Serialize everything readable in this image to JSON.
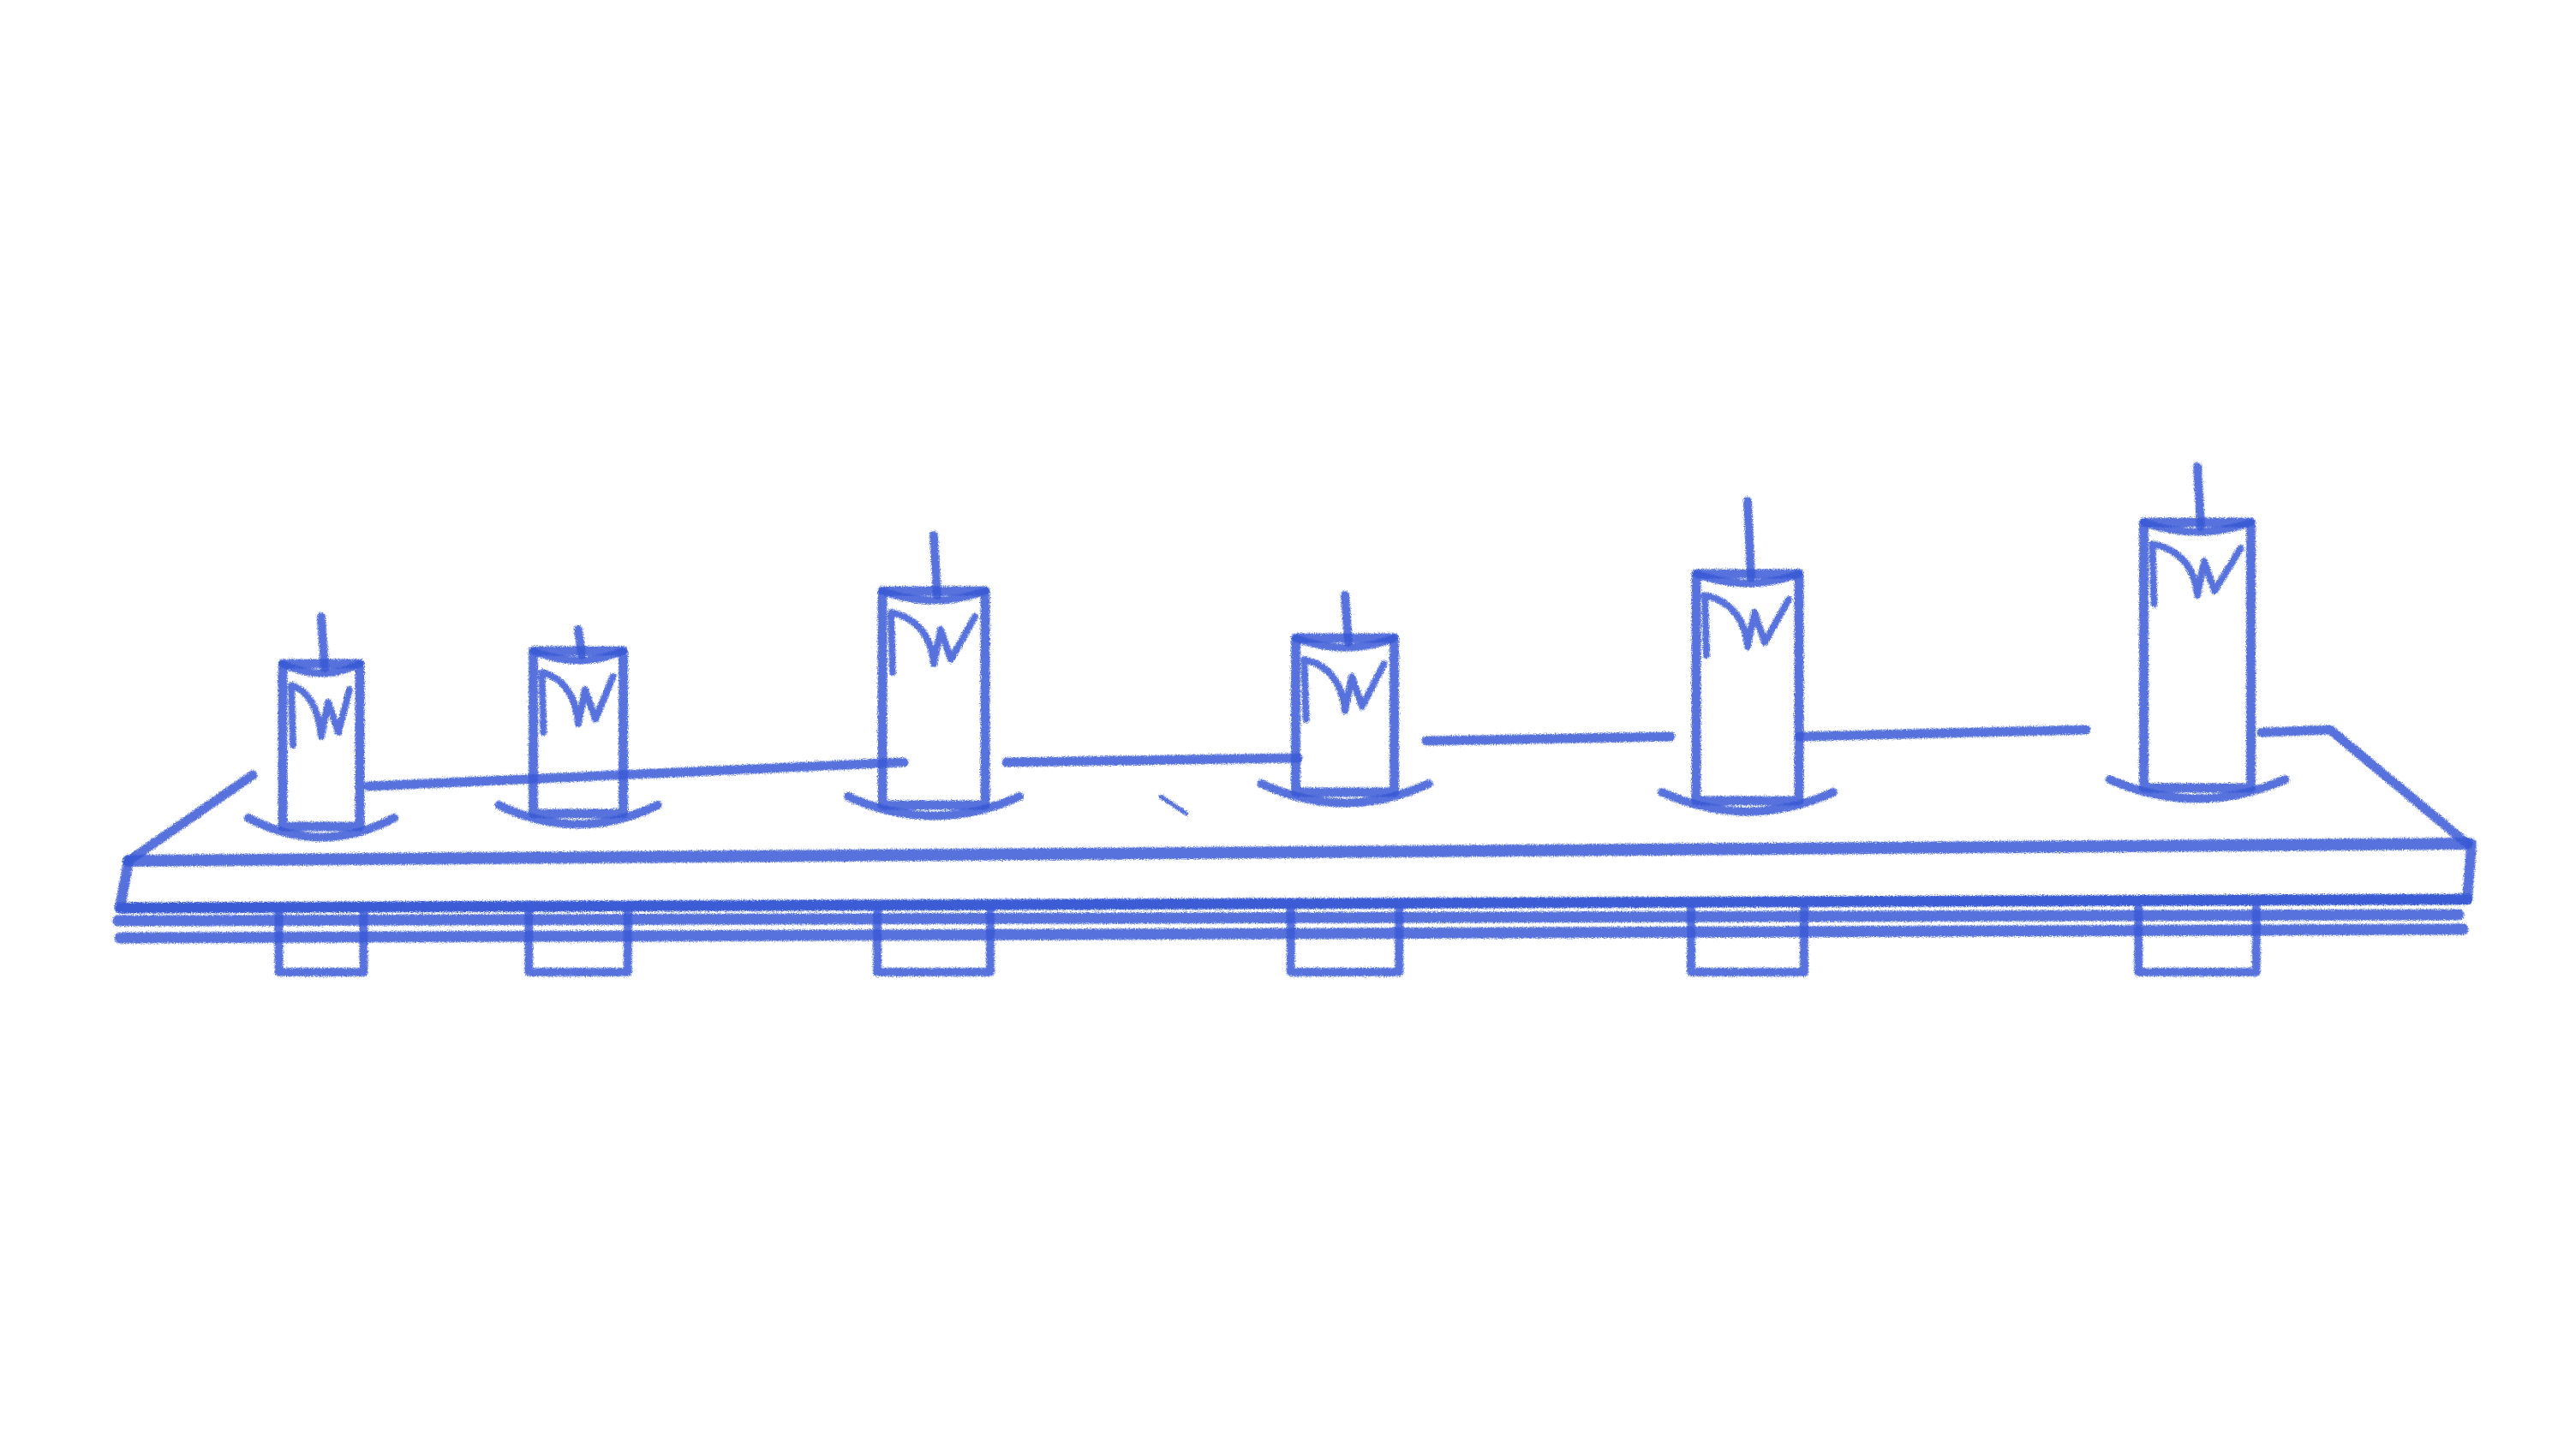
{
  "drawing": {
    "style": "crayon sketch",
    "stroke_color": "#3a5bd6",
    "background_color": "#ffffff",
    "subject": "shelf-with-candles",
    "candles": [
      {
        "name": "candle-1"
      },
      {
        "name": "candle-2"
      },
      {
        "name": "candle-3"
      },
      {
        "name": "candle-4"
      },
      {
        "name": "candle-5"
      },
      {
        "name": "candle-6"
      }
    ]
  }
}
